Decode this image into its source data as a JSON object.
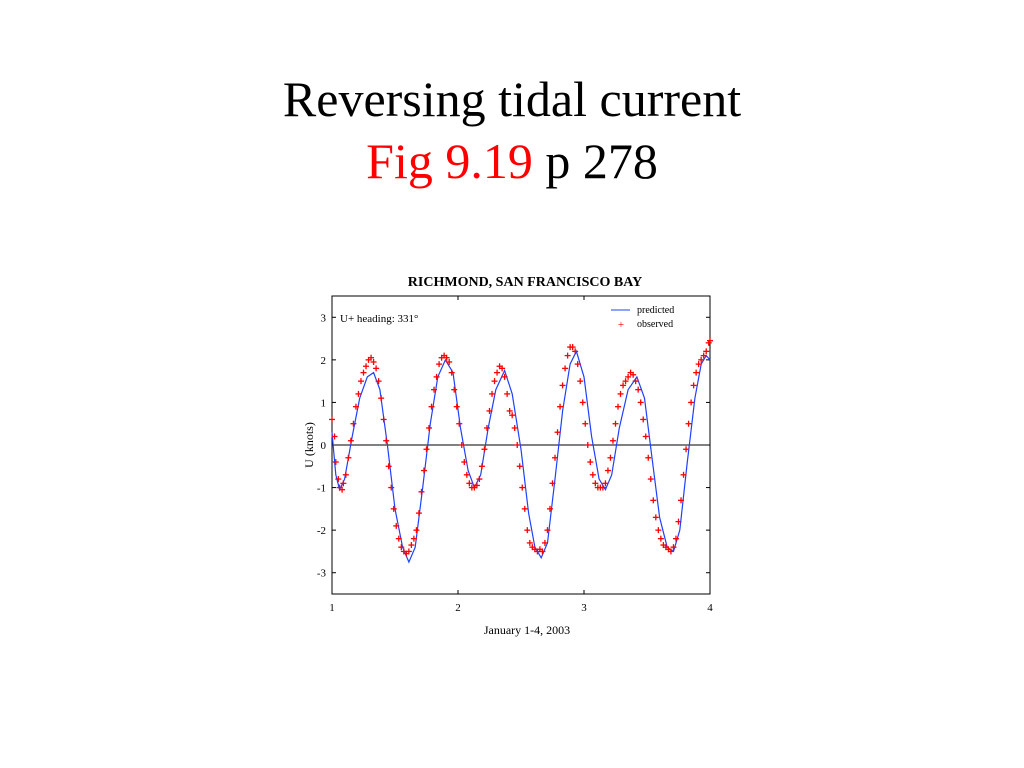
{
  "slide": {
    "title_line1": "Reversing tidal current",
    "fig_ref": "Fig 9.19",
    "page_ref": "p 278"
  },
  "colors": {
    "fig_ref": "#ff0000",
    "predicted": "#2040ff",
    "observed": "#ff0000"
  },
  "chart_data": {
    "type": "line",
    "title": "RICHMOND, SAN FRANCISCO BAY",
    "xlabel": "January 1-4, 2003",
    "ylabel": "U (knots)",
    "annotation": "U+ heading: 331°",
    "xlim": [
      1,
      4
    ],
    "ylim": [
      -3.5,
      3.5
    ],
    "xticks": [
      1,
      2,
      3,
      4
    ],
    "yticks": [
      -3,
      -2,
      -1,
      0,
      1,
      2,
      3
    ],
    "zero_line": true,
    "legend_position": "top-right",
    "series": [
      {
        "name": "predicted",
        "style": "line",
        "points": [
          [
            1.0,
            0.3
          ],
          [
            1.03,
            -0.7
          ],
          [
            1.06,
            -1.05
          ],
          [
            1.1,
            -0.8
          ],
          [
            1.16,
            0.2
          ],
          [
            1.22,
            1.1
          ],
          [
            1.28,
            1.6
          ],
          [
            1.33,
            1.7
          ],
          [
            1.38,
            1.3
          ],
          [
            1.44,
            0.0
          ],
          [
            1.5,
            -1.5
          ],
          [
            1.56,
            -2.4
          ],
          [
            1.61,
            -2.75
          ],
          [
            1.66,
            -2.4
          ],
          [
            1.72,
            -1.0
          ],
          [
            1.78,
            0.5
          ],
          [
            1.84,
            1.6
          ],
          [
            1.9,
            2.0
          ],
          [
            1.96,
            1.7
          ],
          [
            2.02,
            0.4
          ],
          [
            2.08,
            -0.6
          ],
          [
            2.13,
            -1.0
          ],
          [
            2.18,
            -0.7
          ],
          [
            2.24,
            0.4
          ],
          [
            2.3,
            1.3
          ],
          [
            2.37,
            1.75
          ],
          [
            2.43,
            1.2
          ],
          [
            2.5,
            -0.1
          ],
          [
            2.56,
            -1.6
          ],
          [
            2.61,
            -2.4
          ],
          [
            2.66,
            -2.65
          ],
          [
            2.71,
            -2.3
          ],
          [
            2.77,
            -0.8
          ],
          [
            2.83,
            0.8
          ],
          [
            2.89,
            1.9
          ],
          [
            2.94,
            2.2
          ],
          [
            3.0,
            1.6
          ],
          [
            3.06,
            0.2
          ],
          [
            3.12,
            -0.8
          ],
          [
            3.17,
            -1.05
          ],
          [
            3.22,
            -0.7
          ],
          [
            3.28,
            0.4
          ],
          [
            3.35,
            1.3
          ],
          [
            3.42,
            1.6
          ],
          [
            3.48,
            1.1
          ],
          [
            3.54,
            -0.3
          ],
          [
            3.6,
            -1.7
          ],
          [
            3.66,
            -2.4
          ],
          [
            3.71,
            -2.5
          ],
          [
            3.76,
            -2.0
          ],
          [
            3.82,
            -0.4
          ],
          [
            3.88,
            1.1
          ],
          [
            3.93,
            1.9
          ],
          [
            3.97,
            2.1
          ],
          [
            4.0,
            2.0
          ]
        ]
      },
      {
        "name": "observed",
        "style": "markers",
        "marker": "+",
        "points": [
          [
            1.0,
            0.6
          ],
          [
            1.02,
            0.2
          ],
          [
            1.03,
            -0.4
          ],
          [
            1.05,
            -0.8
          ],
          [
            1.06,
            -1.0
          ],
          [
            1.08,
            -1.05
          ],
          [
            1.09,
            -0.9
          ],
          [
            1.11,
            -0.7
          ],
          [
            1.13,
            -0.3
          ],
          [
            1.15,
            0.1
          ],
          [
            1.17,
            0.5
          ],
          [
            1.19,
            0.9
          ],
          [
            1.21,
            1.2
          ],
          [
            1.23,
            1.5
          ],
          [
            1.25,
            1.7
          ],
          [
            1.27,
            1.85
          ],
          [
            1.29,
            2.0
          ],
          [
            1.31,
            2.05
          ],
          [
            1.33,
            1.95
          ],
          [
            1.35,
            1.8
          ],
          [
            1.37,
            1.5
          ],
          [
            1.39,
            1.1
          ],
          [
            1.41,
            0.6
          ],
          [
            1.43,
            0.1
          ],
          [
            1.45,
            -0.5
          ],
          [
            1.47,
            -1.0
          ],
          [
            1.49,
            -1.5
          ],
          [
            1.51,
            -1.9
          ],
          [
            1.53,
            -2.2
          ],
          [
            1.55,
            -2.4
          ],
          [
            1.57,
            -2.5
          ],
          [
            1.59,
            -2.55
          ],
          [
            1.61,
            -2.5
          ],
          [
            1.63,
            -2.35
          ],
          [
            1.65,
            -2.2
          ],
          [
            1.67,
            -2.0
          ],
          [
            1.69,
            -1.6
          ],
          [
            1.71,
            -1.1
          ],
          [
            1.73,
            -0.6
          ],
          [
            1.75,
            -0.1
          ],
          [
            1.77,
            0.4
          ],
          [
            1.79,
            0.9
          ],
          [
            1.81,
            1.3
          ],
          [
            1.83,
            1.6
          ],
          [
            1.85,
            1.9
          ],
          [
            1.87,
            2.05
          ],
          [
            1.89,
            2.1
          ],
          [
            1.91,
            2.05
          ],
          [
            1.93,
            1.95
          ],
          [
            1.95,
            1.7
          ],
          [
            1.97,
            1.3
          ],
          [
            1.99,
            0.9
          ],
          [
            2.01,
            0.5
          ],
          [
            2.03,
            0.0
          ],
          [
            2.05,
            -0.4
          ],
          [
            2.07,
            -0.7
          ],
          [
            2.09,
            -0.9
          ],
          [
            2.11,
            -1.0
          ],
          [
            2.13,
            -1.0
          ],
          [
            2.15,
            -0.95
          ],
          [
            2.17,
            -0.8
          ],
          [
            2.19,
            -0.5
          ],
          [
            2.21,
            -0.1
          ],
          [
            2.23,
            0.4
          ],
          [
            2.25,
            0.8
          ],
          [
            2.27,
            1.2
          ],
          [
            2.29,
            1.5
          ],
          [
            2.31,
            1.7
          ],
          [
            2.33,
            1.85
          ],
          [
            2.35,
            1.8
          ],
          [
            2.37,
            1.6
          ],
          [
            2.39,
            1.2
          ],
          [
            2.41,
            0.8
          ],
          [
            2.43,
            0.7
          ],
          [
            2.45,
            0.4
          ],
          [
            2.47,
            0.0
          ],
          [
            2.49,
            -0.5
          ],
          [
            2.51,
            -1.0
          ],
          [
            2.53,
            -1.5
          ],
          [
            2.55,
            -2.0
          ],
          [
            2.57,
            -2.3
          ],
          [
            2.59,
            -2.4
          ],
          [
            2.61,
            -2.45
          ],
          [
            2.63,
            -2.5
          ],
          [
            2.65,
            -2.45
          ],
          [
            2.67,
            -2.5
          ],
          [
            2.69,
            -2.3
          ],
          [
            2.71,
            -2.0
          ],
          [
            2.73,
            -1.5
          ],
          [
            2.75,
            -0.9
          ],
          [
            2.77,
            -0.3
          ],
          [
            2.79,
            0.3
          ],
          [
            2.81,
            0.9
          ],
          [
            2.83,
            1.4
          ],
          [
            2.85,
            1.8
          ],
          [
            2.87,
            2.1
          ],
          [
            2.89,
            2.3
          ],
          [
            2.91,
            2.3
          ],
          [
            2.93,
            2.2
          ],
          [
            2.95,
            1.9
          ],
          [
            2.97,
            1.5
          ],
          [
            2.99,
            1.0
          ],
          [
            3.01,
            0.5
          ],
          [
            3.03,
            0.0
          ],
          [
            3.05,
            -0.4
          ],
          [
            3.07,
            -0.7
          ],
          [
            3.09,
            -0.9
          ],
          [
            3.11,
            -1.0
          ],
          [
            3.13,
            -1.0
          ],
          [
            3.15,
            -1.0
          ],
          [
            3.17,
            -0.9
          ],
          [
            3.19,
            -0.6
          ],
          [
            3.21,
            -0.3
          ],
          [
            3.23,
            0.1
          ],
          [
            3.25,
            0.5
          ],
          [
            3.27,
            0.9
          ],
          [
            3.29,
            1.2
          ],
          [
            3.31,
            1.4
          ],
          [
            3.33,
            1.5
          ],
          [
            3.35,
            1.6
          ],
          [
            3.37,
            1.7
          ],
          [
            3.39,
            1.65
          ],
          [
            3.41,
            1.5
          ],
          [
            3.43,
            1.3
          ],
          [
            3.45,
            1.0
          ],
          [
            3.47,
            0.6
          ],
          [
            3.49,
            0.2
          ],
          [
            3.51,
            -0.3
          ],
          [
            3.53,
            -0.8
          ],
          [
            3.55,
            -1.3
          ],
          [
            3.57,
            -1.7
          ],
          [
            3.59,
            -2.0
          ],
          [
            3.61,
            -2.2
          ],
          [
            3.63,
            -2.35
          ],
          [
            3.65,
            -2.4
          ],
          [
            3.67,
            -2.45
          ],
          [
            3.69,
            -2.5
          ],
          [
            3.71,
            -2.4
          ],
          [
            3.73,
            -2.2
          ],
          [
            3.75,
            -1.8
          ],
          [
            3.77,
            -1.3
          ],
          [
            3.79,
            -0.7
          ],
          [
            3.81,
            -0.1
          ],
          [
            3.83,
            0.5
          ],
          [
            3.85,
            1.0
          ],
          [
            3.87,
            1.4
          ],
          [
            3.89,
            1.7
          ],
          [
            3.91,
            1.9
          ],
          [
            3.93,
            2.0
          ],
          [
            3.95,
            2.1
          ],
          [
            3.97,
            2.2
          ],
          [
            3.99,
            2.4
          ],
          [
            4.0,
            2.45
          ]
        ]
      }
    ]
  }
}
